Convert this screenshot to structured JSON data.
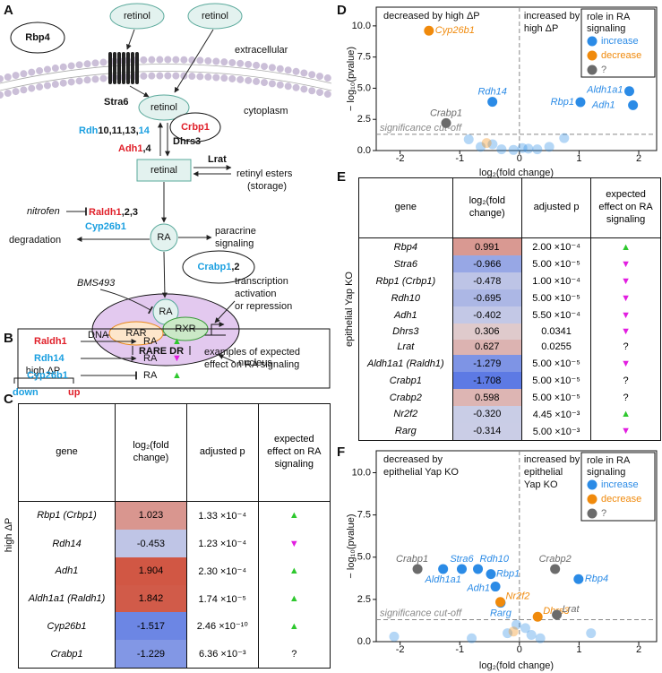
{
  "panel_labels": [
    "A",
    "B",
    "C",
    "D",
    "E",
    "F"
  ],
  "effect_colors": {
    "▲": "#2ec82e",
    "▼": "#e21ee0"
  },
  "diagram": {
    "rbp4": "Rbp4",
    "retinol_1": "retinol",
    "retinol_2": "retinol",
    "extracellular": "extracellular",
    "stra6": "Stra6",
    "cytoplasm": "cytoplasm",
    "retinol_3": "retinol",
    "crbp1": "Crbp1",
    "rdh": [
      "Rdh",
      "10,11,13,",
      "14"
    ],
    "dhrs3": "Dhrs3",
    "adh": [
      "Adh1",
      ",4"
    ],
    "retinal": "retinal",
    "lrat": "Lrat",
    "retinyl_esters": [
      "retinyl esters",
      "(storage)"
    ],
    "nitrofen": "nitrofen",
    "raldh": [
      "Raldh1",
      ",2,3"
    ],
    "cyp26b1": "Cyp26b1",
    "degradation": "degradation",
    "ra": "RA",
    "paracrine": [
      "paracrine",
      "signaling"
    ],
    "crabp": [
      "Crabp1",
      ",2"
    ],
    "bms493": "BMS493",
    "transcription": [
      "transcription",
      "activation",
      "or repression"
    ],
    "ra_nuclear": "RA",
    "dna": "DNA",
    "rar": "RAR",
    "rxr": "RXR",
    "rare": "RARE DR",
    "nucleus": "nucleus",
    "key": {
      "title": "high ΔP",
      "down": "down",
      "up": "up"
    }
  },
  "examples": {
    "rows": [
      {
        "gene": "Raldh1",
        "target": "RA",
        "effect": "▲"
      },
      {
        "gene": "Rdh14",
        "target": "RA",
        "effect": "▼"
      },
      {
        "gene": "Cyp26b1",
        "target": "RA",
        "effect": "▲"
      }
    ],
    "caption": [
      "examples of expected",
      "effect on RA signaling"
    ]
  },
  "table_c": {
    "group": "high ΔP",
    "header": [
      "gene",
      "log₂(fold change)",
      "adjusted p",
      "expected effect on RA signaling"
    ],
    "rows": [
      [
        "Rbp1 (Crbp1)",
        "1.023",
        "1.33 ×10⁻⁴",
        "▲"
      ],
      [
        "Rdh14",
        "-0.453",
        "1.23 ×10⁻⁴",
        "▼"
      ],
      [
        "Adh1",
        "1.904",
        "2.30 ×10⁻⁴",
        "▲"
      ],
      [
        "Aldh1a1 (Raldh1)",
        "1.842",
        "1.74 ×10⁻⁵",
        "▲"
      ],
      [
        "Cyp26b1",
        "-1.517",
        "2.46 ×10⁻¹⁰",
        "▲"
      ],
      [
        "Crabp1",
        "-1.229",
        "6.36 ×10⁻³",
        "?"
      ]
    ]
  },
  "table_e": {
    "group": "epithelial Yap KO",
    "header": [
      "gene",
      "log₂(fold change)",
      "adjusted p",
      "expected effect on RA signaling"
    ],
    "rows": [
      [
        "Rbp4",
        "0.991",
        "2.00 ×10⁻⁴",
        "▲"
      ],
      [
        "Stra6",
        "-0.966",
        "5.00 ×10⁻⁵",
        "▼"
      ],
      [
        "Rbp1 (Crbp1)",
        "-0.478",
        "1.00 ×10⁻⁴",
        "▼"
      ],
      [
        "Rdh10",
        "-0.695",
        "5.00 ×10⁻⁵",
        "▼"
      ],
      [
        "Adh1",
        "-0.402",
        "5.50 ×10⁻⁴",
        "▼"
      ],
      [
        "Dhrs3",
        "0.306",
        "0.0341",
        "▼"
      ],
      [
        "Lrat",
        "0.627",
        "0.0255",
        "?"
      ],
      [
        "Aldh1a1 (Raldh1)",
        "-1.279",
        "5.00 ×10⁻⁵",
        "▼"
      ],
      [
        "Crabp1",
        "-1.708",
        "5.00 ×10⁻⁵",
        "?"
      ],
      [
        "Crabp2",
        "0.598",
        "5.00 ×10⁻⁵",
        "?"
      ],
      [
        "Nr2f2",
        "-0.320",
        "4.45 ×10⁻³",
        "▲"
      ],
      [
        "Rarg",
        "-0.314",
        "5.00 ×10⁻³",
        "▼"
      ]
    ]
  },
  "chart_data": [
    {
      "type": "scatter",
      "xlabel": "log₂(fold change)",
      "ylabel": "− log₁₀(pvalue)",
      "annotations": {
        "left": [
          "decreased by high ΔP"
        ],
        "right": [
          "increased by",
          "high ΔP"
        ]
      },
      "cutoff": {
        "value": 1.3,
        "label": "significance cut-off"
      },
      "legend_title": [
        "role in RA",
        "signaling"
      ],
      "legend": "upper right",
      "xlim": [
        -2.4,
        2.3
      ],
      "xticks": [
        -2,
        -1,
        0,
        1,
        2
      ],
      "ylim": [
        0,
        11.5
      ],
      "yticks": [
        {
          "value": 0,
          "label": "0.0"
        },
        {
          "value": 2.5,
          "label": "2.5"
        },
        {
          "value": 5,
          "label": "5.0"
        },
        {
          "value": 7.5,
          "label": "7.5"
        },
        {
          "value": 10,
          "label": "10.0"
        }
      ],
      "series": [
        {
          "name": "increase",
          "color": "#2b8be6",
          "x": [
            -0.453,
            1.023,
            1.842,
            1.904,
            -0.85,
            -0.65,
            -0.45,
            -0.3,
            -0.1,
            0.05,
            0.15,
            0.3,
            0.5,
            0.75
          ],
          "values": [
            3.91,
            3.88,
            4.76,
            3.64,
            0.9,
            0.3,
            0.5,
            0.1,
            0.05,
            0.2,
            0.15,
            0.1,
            0.3,
            1.0
          ],
          "labels": [
            "Rdh14",
            "Rbp1",
            "Aldh1a1",
            "Adh1",
            null,
            null,
            null,
            null,
            null,
            null,
            null,
            null,
            null,
            null
          ]
        },
        {
          "name": "decrease",
          "color": "#f08a0c",
          "x": [
            -1.517,
            -0.55
          ],
          "values": [
            9.61,
            0.6
          ],
          "labels": [
            "Cyp26b1",
            null
          ]
        },
        {
          "name": "?",
          "color": "#6b6b6b",
          "x": [
            -1.229
          ],
          "values": [
            2.2
          ],
          "labels": [
            "Crabp1"
          ]
        }
      ]
    },
    {
      "type": "scatter",
      "xlabel": "log₂(fold change)",
      "ylabel": "− log₁₀(pvalue)",
      "annotations": {
        "left": [
          "decreased by",
          "epithelial Yap KO"
        ],
        "right": [
          "increased by",
          "epithelial",
          "Yap KO"
        ]
      },
      "cutoff": {
        "value": 1.3,
        "label": "significance cut-off"
      },
      "legend_title": [
        "role in RA",
        "signaling"
      ],
      "legend": "upper right",
      "xlim": [
        -2.4,
        2.3
      ],
      "xticks": [
        -2,
        -1,
        0,
        1,
        2
      ],
      "ylim": [
        0,
        11.3
      ],
      "yticks": [
        {
          "value": 0,
          "label": "0.0"
        },
        {
          "value": 2.5,
          "label": "2.5"
        },
        {
          "value": 5,
          "label": "5.0"
        },
        {
          "value": 7.5,
          "label": "7.5"
        },
        {
          "value": 10,
          "label": "10.0"
        }
      ],
      "series": [
        {
          "name": "increase",
          "color": "#2b8be6",
          "x": [
            -0.966,
            -0.695,
            -1.279,
            -0.402,
            -0.478,
            -0.314,
            0.991,
            -2.1,
            -0.8,
            -0.2,
            -0.05,
            0.1,
            0.2,
            0.35,
            1.2
          ],
          "values": [
            4.3,
            4.3,
            4.3,
            3.26,
            4.0,
            2.3,
            3.7,
            0.3,
            0.2,
            0.5,
            1.0,
            0.8,
            0.4,
            0.2,
            0.5
          ],
          "labels": [
            "Stra6",
            "Rdh10",
            "Aldh1a1",
            "Adh1",
            "Rbp1",
            "Rarg",
            "Rbp4",
            null,
            null,
            null,
            null,
            null,
            null,
            null,
            null
          ]
        },
        {
          "name": "decrease",
          "color": "#f08a0c",
          "x": [
            -0.32,
            0.306,
            -0.1
          ],
          "values": [
            2.35,
            1.47,
            0.6
          ],
          "labels": [
            "Nr2f2",
            "Dhrs3",
            null
          ]
        },
        {
          "name": "?",
          "color": "#6b6b6b",
          "x": [
            -1.708,
            0.598,
            0.627
          ],
          "values": [
            4.3,
            4.3,
            1.59
          ],
          "labels": [
            "Crabp1",
            "Crabp2",
            "Lrat"
          ]
        }
      ]
    }
  ]
}
